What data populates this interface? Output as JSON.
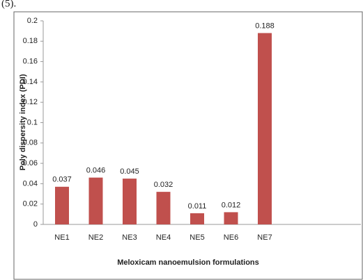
{
  "chart_data": {
    "type": "bar",
    "annotation": "(5).",
    "ylabel": "Poly dispersity index (PDI)",
    "xlabel": "Meloxicam nanoemulsion formulations",
    "categories": [
      "NE1",
      "NE2",
      "NE3",
      "NE4",
      "NE5",
      "NE6",
      "NE7"
    ],
    "values": [
      0.037,
      0.046,
      0.045,
      0.032,
      0.011,
      0.012,
      0.188
    ],
    "color": "#c0504d",
    "ylim": [
      0,
      0.2
    ],
    "yticks": [
      0,
      0.02,
      0.04,
      0.06,
      0.08,
      0.1,
      0.12,
      0.14,
      0.16,
      0.18,
      0.2
    ],
    "grid": false
  }
}
